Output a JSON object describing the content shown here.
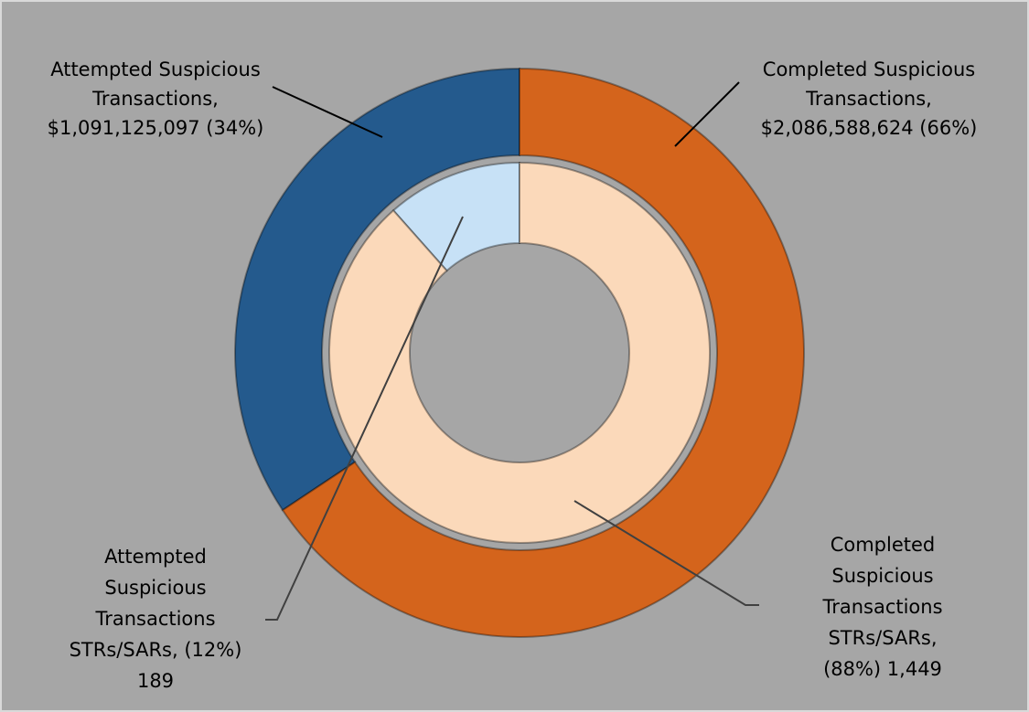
{
  "chart_data": {
    "type": "donut",
    "rings": [
      {
        "values": [
          1091125097,
          2086588624
        ],
        "colors": [
          "#245a8d",
          "#d4641c"
        ],
        "labels": [
          [
            "Attempted Suspicious",
            "Transactions,",
            "$1,091,125,097 (34%)"
          ],
          [
            "Completed Suspicious",
            "Transactions,",
            "$2,086,588,624 (66%)"
          ]
        ]
      },
      {
        "values": [
          189,
          1449
        ],
        "colors": [
          "#c7e1f6",
          "#fbd9ba"
        ],
        "labels": [
          [
            "Attempted",
            "Suspicious",
            "Transactions",
            "STRs/SARs, (12%)",
            "189"
          ],
          [
            "Completed",
            "Suspicious",
            "Transactions",
            "STRs/SARs,",
            "(88%) 1,449"
          ]
        ]
      }
    ]
  }
}
